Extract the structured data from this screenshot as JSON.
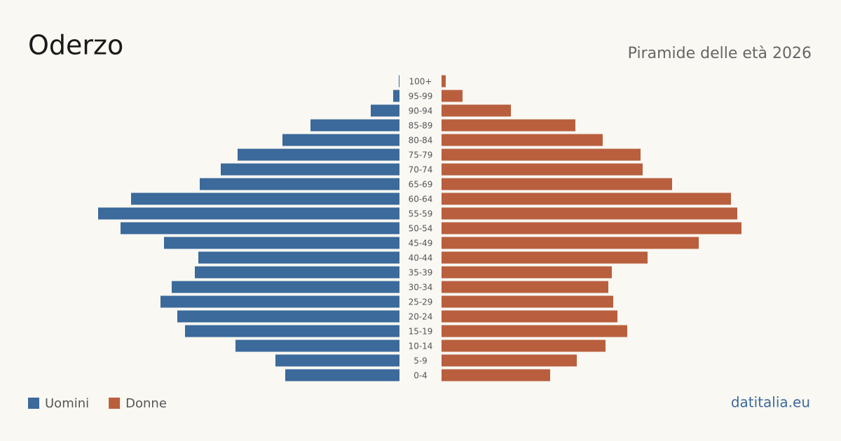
{
  "chart_data": {
    "type": "population-pyramid",
    "title": "Oderzo",
    "subtitle": "Piramide delle età 2026",
    "source": "datitalia.eu",
    "categories": [
      "100+",
      "95-99",
      "90-94",
      "85-89",
      "80-84",
      "75-79",
      "70-74",
      "65-69",
      "60-64",
      "55-59",
      "50-54",
      "45-49",
      "40-44",
      "35-39",
      "30-34",
      "25-29",
      "20-24",
      "15-19",
      "10-14",
      "5-9",
      "0-4"
    ],
    "series": [
      {
        "name": "Uomini",
        "color": "#3b6a9b",
        "values": [
          2,
          18,
          82,
          254,
          334,
          462,
          510,
          570,
          766,
          860,
          796,
          672,
          574,
          584,
          650,
          682,
          634,
          612,
          468,
          354,
          326
        ]
      },
      {
        "name": "Donne",
        "color": "#b95f3e",
        "values": [
          12,
          60,
          198,
          382,
          460,
          568,
          574,
          658,
          826,
          844,
          856,
          734,
          588,
          486,
          476,
          490,
          502,
          530,
          468,
          386,
          310
        ]
      }
    ]
  }
}
